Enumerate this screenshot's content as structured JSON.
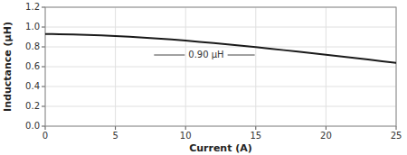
{
  "chart_data": {
    "type": "line",
    "xlabel": "Current (A)",
    "ylabel": "Inductance (μH)",
    "x": [
      0,
      0.5,
      1,
      2,
      3,
      4,
      5,
      6,
      7,
      8,
      9,
      10,
      11,
      12,
      13,
      14,
      15,
      16,
      17,
      18,
      19,
      20,
      21,
      22,
      23,
      24,
      25
    ],
    "values": [
      0.93,
      0.929,
      0.927,
      0.924,
      0.92,
      0.915,
      0.909,
      0.902,
      0.894,
      0.885,
      0.875,
      0.863,
      0.851,
      0.838,
      0.825,
      0.811,
      0.797,
      0.782,
      0.767,
      0.752,
      0.737,
      0.721,
      0.705,
      0.689,
      0.672,
      0.655,
      0.638
    ],
    "color": "#1a1a1a",
    "xlim": [
      0,
      25
    ],
    "ylim": [
      0,
      1.2
    ],
    "xticks": [
      0,
      5,
      10,
      15,
      20,
      25
    ],
    "yticks": [
      {
        "value": 0,
        "label": "0.0"
      },
      0.2,
      0.4,
      0.6,
      0.8,
      {
        "value": 1.0,
        "label": "1.0"
      },
      1.2
    ],
    "annotations": [
      {
        "text": "0.90 μH",
        "x": 10.2,
        "y": 0.718
      }
    ],
    "grid": true
  }
}
